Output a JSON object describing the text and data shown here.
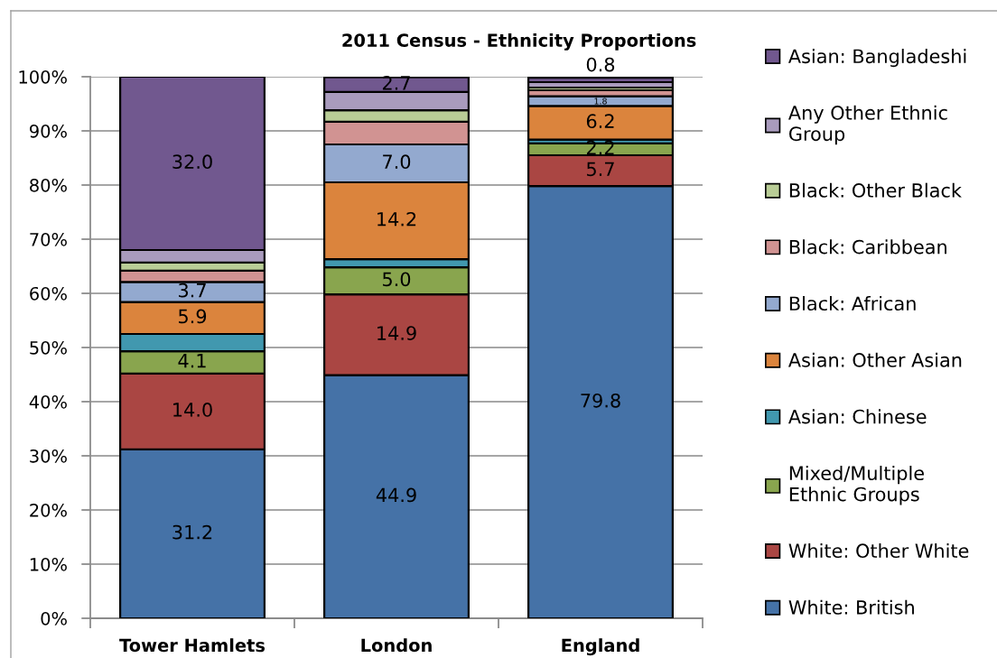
{
  "chart_data": {
    "type": "bar",
    "title": "2011 Census - Ethnicity Proportions",
    "categories": [
      "Tower Hamlets",
      "London",
      "England"
    ],
    "stacked": true,
    "legend": "right",
    "grid": "y",
    "ylim": [
      0,
      100
    ],
    "yticks": [
      {
        "value": 0,
        "label": "0%"
      },
      {
        "value": 10,
        "label": "10%"
      },
      {
        "value": 20,
        "label": "20%"
      },
      {
        "value": 30,
        "label": "30%"
      },
      {
        "value": 40,
        "label": "40%"
      },
      {
        "value": 50,
        "label": "50%"
      },
      {
        "value": 60,
        "label": "60%"
      },
      {
        "value": 70,
        "label": "70%"
      },
      {
        "value": 80,
        "label": "80%"
      },
      {
        "value": 90,
        "label": "90%"
      },
      {
        "value": 100,
        "label": "100%"
      }
    ],
    "series": [
      {
        "name": "White: British",
        "color": "#4572a7",
        "values": [
          31.2,
          44.9,
          79.8
        ],
        "value_labels": [
          "31.2",
          "44.9",
          "79.8"
        ]
      },
      {
        "name": "White: Other White",
        "color": "#aa4643",
        "values": [
          14.0,
          14.9,
          5.7
        ],
        "value_labels": [
          "14.0",
          "14.9",
          "5.7"
        ]
      },
      {
        "name": "Mixed/Multiple Ethnic Groups",
        "color": "#89a54e",
        "values": [
          4.1,
          5.0,
          2.2
        ],
        "value_labels": [
          "4.1",
          "5.0",
          "2.2"
        ]
      },
      {
        "name": "Asian: Chinese",
        "color": "#4198af",
        "values": [
          3.2,
          1.5,
          0.7
        ]
      },
      {
        "name": "Asian: Other Asian",
        "color": "#db843d",
        "values": [
          5.9,
          14.2,
          6.2
        ],
        "value_labels": [
          "5.9",
          "14.2",
          "6.2"
        ]
      },
      {
        "name": "Black: African",
        "color": "#93a9cf",
        "values": [
          3.7,
          7.0,
          1.8
        ],
        "value_labels": [
          "3.7",
          "7.0",
          "1.8"
        ]
      },
      {
        "name": "Black: Caribbean",
        "color": "#d19392",
        "values": [
          2.1,
          4.2,
          1.1
        ]
      },
      {
        "name": "Black: Other Black",
        "color": "#b9cd96",
        "values": [
          1.5,
          2.1,
          0.5
        ]
      },
      {
        "name": "Any Other Ethnic Group",
        "color": "#a99bbd",
        "values": [
          2.3,
          3.4,
          1.0
        ]
      },
      {
        "name": "Asian: Bangladeshi",
        "color": "#71588f",
        "values": [
          32.0,
          2.7,
          0.8
        ],
        "value_labels": [
          "32.0",
          "2.7",
          "0.8"
        ]
      }
    ]
  }
}
